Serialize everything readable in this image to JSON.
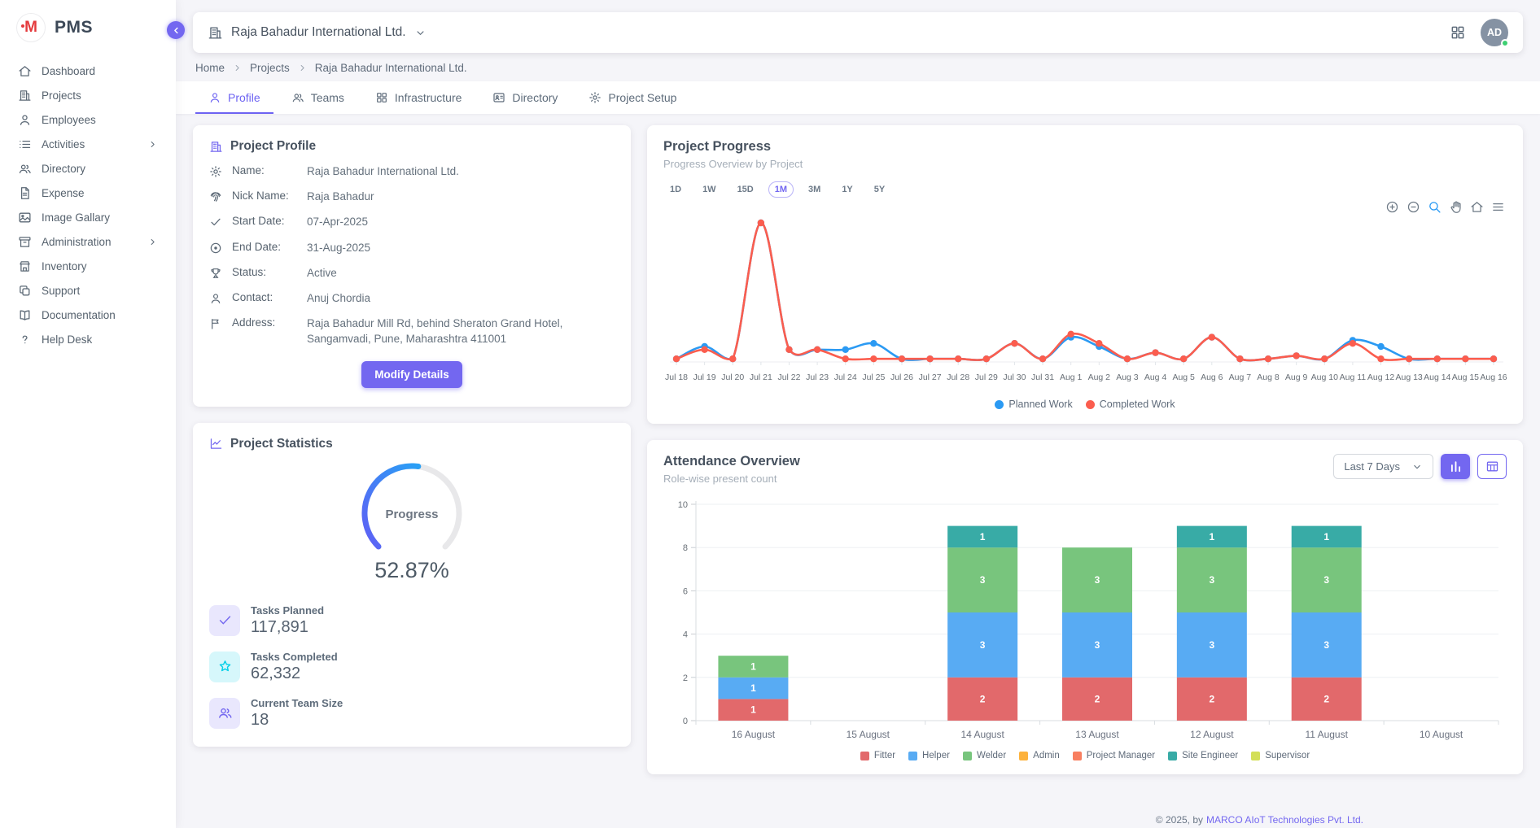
{
  "app": {
    "name": "PMS",
    "logo_letter": "M"
  },
  "sidebar": {
    "items": [
      {
        "label": "Dashboard",
        "icon": "home"
      },
      {
        "label": "Projects",
        "icon": "building"
      },
      {
        "label": "Employees",
        "icon": "user"
      },
      {
        "label": "Activities",
        "icon": "list",
        "chevron": true
      },
      {
        "label": "Directory",
        "icon": "users"
      },
      {
        "label": "Expense",
        "icon": "file-text"
      },
      {
        "label": "Image Gallary",
        "icon": "image"
      },
      {
        "label": "Administration",
        "icon": "archive",
        "chevron": true
      },
      {
        "label": "Inventory",
        "icon": "store"
      },
      {
        "label": "Support",
        "icon": "copy"
      },
      {
        "label": "Documentation",
        "icon": "book"
      },
      {
        "label": "Help Desk",
        "icon": "help"
      }
    ]
  },
  "header": {
    "company": "Raja Bahadur International Ltd.",
    "avatar_initials": "AD"
  },
  "breadcrumb": [
    {
      "label": "Home",
      "link": true
    },
    {
      "label": "Projects",
      "link": true
    },
    {
      "label": "Raja Bahadur International Ltd.",
      "link": false
    }
  ],
  "tabs": [
    {
      "label": "Profile",
      "icon": "user",
      "active": true
    },
    {
      "label": "Teams",
      "icon": "users",
      "active": false
    },
    {
      "label": "Infrastructure",
      "icon": "grid",
      "active": false
    },
    {
      "label": "Directory",
      "icon": "id-card",
      "active": false
    },
    {
      "label": "Project Setup",
      "icon": "gear",
      "active": false
    }
  ],
  "profile_card": {
    "title": "Project Profile",
    "fields": [
      {
        "icon": "gear",
        "label": "Name:",
        "value": "Raja Bahadur International Ltd."
      },
      {
        "icon": "fingerprint",
        "label": "Nick Name:",
        "value": "Raja Bahadur"
      },
      {
        "icon": "check",
        "label": "Start Date:",
        "value": "07-Apr-2025"
      },
      {
        "icon": "disc",
        "label": "End Date:",
        "value": "31-Aug-2025"
      },
      {
        "icon": "trophy",
        "label": "Status:",
        "value": "Active"
      },
      {
        "icon": "user",
        "label": "Contact:",
        "value": "Anuj Chordia"
      },
      {
        "icon": "flag",
        "label": "Address:",
        "value": "Raja Bahadur Mill Rd, behind Sheraton Grand Hotel, Sangamvadi, Pune, Maharashtra 411001"
      }
    ],
    "button": "Modify Details"
  },
  "stats_card": {
    "title": "Project Statistics",
    "gauge": {
      "label": "Progress",
      "percent": 52.87,
      "display": "52.87%"
    },
    "stats": [
      {
        "icon": "check",
        "tile": "purple",
        "label": "Tasks Planned",
        "value": "117,891"
      },
      {
        "icon": "star",
        "tile": "cyan",
        "label": "Tasks Completed",
        "value": "62,332"
      },
      {
        "icon": "users",
        "tile": "purple",
        "label": "Current Team Size",
        "value": "18"
      }
    ]
  },
  "progress_card": {
    "title": "Project Progress",
    "subtitle": "Progress Overview by Project",
    "ranges": [
      "1D",
      "1W",
      "15D",
      "1M",
      "3M",
      "1Y",
      "5Y"
    ],
    "active_range": "1M",
    "toolbar": [
      "zoom-in",
      "zoom-out",
      "selection-zoom",
      "pan",
      "reset-home",
      "menu"
    ]
  },
  "attendance_card": {
    "title": "Attendance Overview",
    "subtitle": "Role-wise present count",
    "filter": "Last 7 Days"
  },
  "footer": {
    "text": "© 2025, by",
    "link": "MARCO AIoT Technologies Pvt. Ltd."
  },
  "colors": {
    "primary": "#7367f0",
    "planned": "#2b9af3",
    "completed": "#fb5d4e",
    "avatar_bg": "#8592a3",
    "online": "#3ecf72"
  },
  "chart_data": [
    {
      "type": "line",
      "title": "Project Progress",
      "x": [
        "Jul 18",
        "Jul 19",
        "Jul 20",
        "Jul 21",
        "Jul 22",
        "Jul 23",
        "Jul 24",
        "Jul 25",
        "Jul 26",
        "Jul 27",
        "Jul 28",
        "Jul 29",
        "Jul 30",
        "Jul 31",
        "Aug 1",
        "Aug 2",
        "Aug 3",
        "Aug 4",
        "Aug 5",
        "Aug 6",
        "Aug 7",
        "Aug 8",
        "Aug 9",
        "Aug 10",
        "Aug 11",
        "Aug 12",
        "Aug 13",
        "Aug 14",
        "Aug 15",
        "Aug 16"
      ],
      "series": [
        {
          "name": "Planned Work",
          "color": "#2b9af3",
          "values": [
            1,
            5,
            1,
            45,
            4,
            4,
            4,
            6,
            1,
            1,
            1,
            1,
            6,
            1,
            8,
            5,
            1,
            3,
            1,
            8,
            1,
            1,
            2,
            1,
            7,
            5,
            1,
            1,
            1,
            1
          ]
        },
        {
          "name": "Completed Work",
          "color": "#fb5d4e",
          "values": [
            1,
            4,
            1,
            45,
            4,
            4,
            1,
            1,
            1,
            1,
            1,
            1,
            6,
            1,
            9,
            6,
            1,
            3,
            1,
            8,
            1,
            1,
            2,
            1,
            6,
            1,
            1,
            1,
            1,
            1
          ]
        }
      ],
      "ylim": [
        0,
        50
      ],
      "y_axis_labels": false,
      "legend_position": "bottom"
    },
    {
      "type": "bar",
      "stacked": true,
      "categories": [
        "16 August",
        "15 August",
        "14 August",
        "13 August",
        "12 August",
        "11 August",
        "10 August"
      ],
      "series": [
        {
          "name": "Fitter",
          "color": "#e2696b",
          "values": [
            1,
            0,
            2,
            2,
            2,
            2,
            0
          ]
        },
        {
          "name": "Helper",
          "color": "#58abf3",
          "values": [
            1,
            0,
            3,
            3,
            3,
            3,
            0
          ]
        },
        {
          "name": "Welder",
          "color": "#78c57d",
          "values": [
            1,
            0,
            3,
            3,
            3,
            3,
            0
          ]
        },
        {
          "name": "Admin",
          "color": "#fdb23c",
          "values": [
            0,
            0,
            0,
            0,
            0,
            0,
            0
          ]
        },
        {
          "name": "Project Manager",
          "color": "#f87f60",
          "values": [
            0,
            0,
            0,
            0,
            0,
            0,
            0
          ]
        },
        {
          "name": "Site Engineer",
          "color": "#38aba6",
          "values": [
            0,
            0,
            1,
            0,
            1,
            1,
            0
          ]
        },
        {
          "name": "Supervisor",
          "color": "#d3df57",
          "values": [
            0,
            0,
            0,
            0,
            0,
            0,
            0
          ]
        }
      ],
      "ylim": [
        0,
        10
      ],
      "yticks": [
        0,
        2,
        4,
        6,
        8,
        10
      ],
      "grid": true,
      "data_labels": true,
      "legend_position": "bottom"
    }
  ]
}
